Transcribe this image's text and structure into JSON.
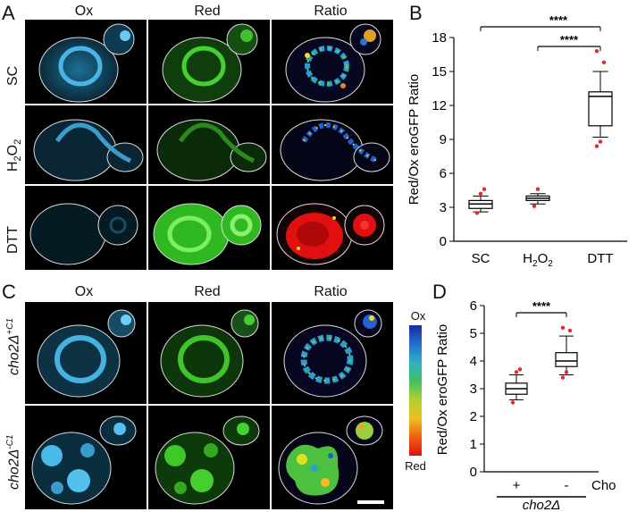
{
  "figure": {
    "panels": {
      "A": {
        "letter": "A",
        "columns": [
          "Ox",
          "Red",
          "Ratio"
        ],
        "rows": [
          "SC",
          "H",
          "DTT"
        ],
        "h2o2_sub": "2",
        "h2o2_mid": "O"
      },
      "B": {
        "letter": "B"
      },
      "C": {
        "letter": "C",
        "columns": [
          "Ox",
          "Red",
          "Ratio"
        ],
        "rows": [
          {
            "base": "cho2Δ",
            "sup": "+C1"
          },
          {
            "base": "cho2Δ",
            "sup": "-C1"
          }
        ],
        "colorbar": {
          "top": "Ox",
          "bottom": "Red"
        }
      },
      "D": {
        "letter": "D"
      }
    },
    "colors": {
      "ox": "#3fa8d8",
      "red": "#39c22a",
      "ratio_low": "#ff0000",
      "ratio_high": "#1030b0",
      "dots": "#e8282a"
    }
  },
  "chart_data": [
    {
      "type": "box",
      "panel": "B",
      "categories": [
        "SC",
        "H2O2",
        "DTT"
      ],
      "category_labels": {
        "SC": "SC",
        "H2O2_base": "H",
        "H2O2_sub": "2",
        "H2O2_mid": "O",
        "DTT": "DTT"
      },
      "ylabel": "Red/Ox eroGFP Ratio",
      "ylim": [
        0,
        18
      ],
      "yticks": [
        0,
        3,
        6,
        9,
        12,
        15,
        18
      ],
      "boxes": [
        {
          "category": "SC",
          "whisker_low": 2.6,
          "q1": 2.9,
          "median": 3.3,
          "q3": 3.6,
          "whisker_high": 4.0,
          "outliers": [
            2.5,
            4.2,
            4.6
          ]
        },
        {
          "category": "H2O2",
          "whisker_low": 3.3,
          "q1": 3.6,
          "median": 3.8,
          "q3": 4.0,
          "whisker_high": 4.2,
          "outliers": [
            3.1,
            4.6
          ]
        },
        {
          "category": "DTT",
          "whisker_low": 9.2,
          "q1": 10.2,
          "median": 12.8,
          "q3": 13.2,
          "whisker_high": 15.0,
          "outliers": [
            8.4,
            8.8,
            15.8,
            16.8
          ]
        }
      ],
      "significance": [
        {
          "from": "SC",
          "to": "DTT",
          "label": "****"
        },
        {
          "from": "H2O2",
          "to": "DTT",
          "label": "****"
        }
      ]
    },
    {
      "type": "box",
      "panel": "D",
      "categories": [
        "+",
        "-"
      ],
      "ylabel": "Red/Ox eroGFP Ratio",
      "ylim": [
        0,
        6
      ],
      "yticks": [
        0,
        1,
        2,
        3,
        4,
        5,
        6
      ],
      "boxes": [
        {
          "category": "+",
          "whisker_low": 2.6,
          "q1": 2.8,
          "median": 3.0,
          "q3": 3.2,
          "whisker_high": 3.5,
          "outliers": [
            2.5,
            3.6,
            3.7
          ]
        },
        {
          "category": "-",
          "whisker_low": 3.5,
          "q1": 3.8,
          "median": 4.0,
          "q3": 4.3,
          "whisker_high": 4.9,
          "outliers": [
            3.4,
            3.6,
            5.1,
            5.2
          ]
        }
      ],
      "significance": [
        {
          "from": "+",
          "to": "-",
          "label": "****"
        }
      ],
      "extra_labels": {
        "cho": "Cho",
        "group": "cho2Δ"
      }
    }
  ]
}
